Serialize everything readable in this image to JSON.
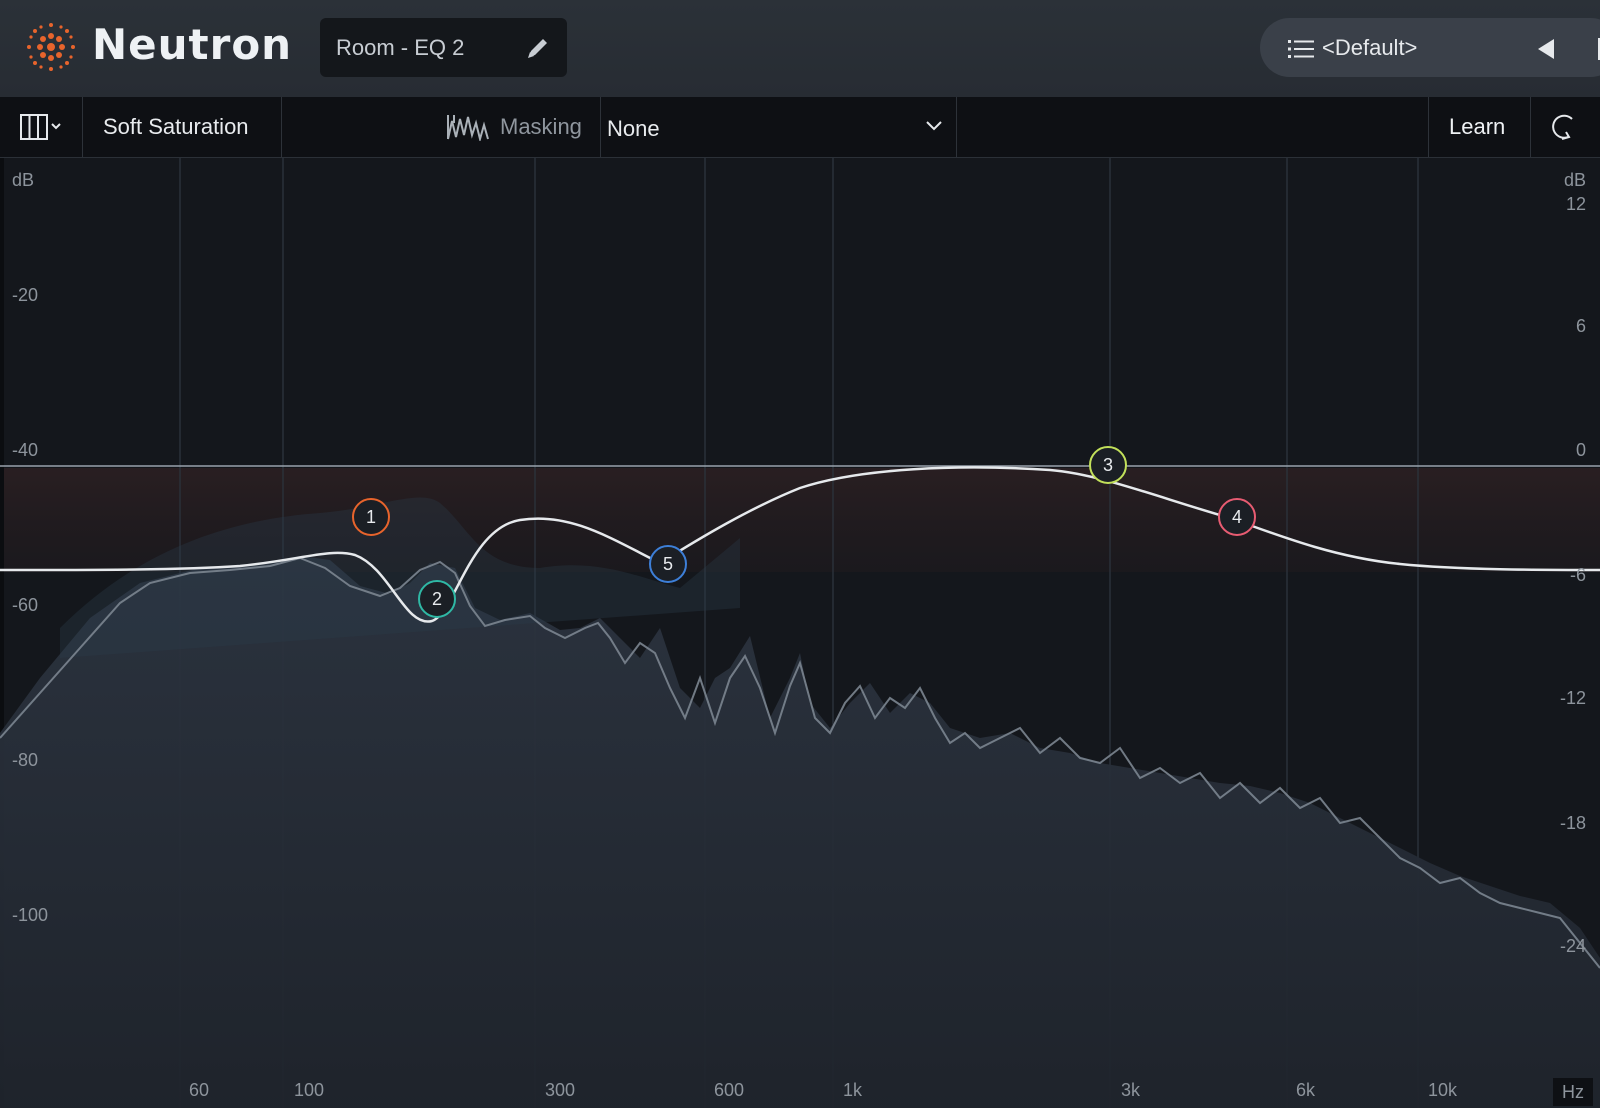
{
  "header": {
    "app_name": "Neutron",
    "preset_name": "Room - EQ 2",
    "preset_selector": "<Default>",
    "icons": [
      "neutron-logo-icon",
      "pencil-icon",
      "list-icon",
      "play-left-icon"
    ]
  },
  "toolbar": {
    "view_icon": "columns-view-icon",
    "soft_saturation": "Soft Saturation",
    "masking_label": "Masking",
    "masking_value": "None",
    "learn": "Learn",
    "reset_icon": "reset-icon"
  },
  "spectrum": {
    "left_unit": "dB",
    "right_unit": "dB",
    "left_scale": [
      "-20",
      "-40",
      "-60",
      "-80",
      "-100"
    ],
    "right_scale": [
      "12",
      "6",
      "0",
      "-6",
      "-12",
      "-18",
      "-24"
    ],
    "freq_labels": [
      "60",
      "100",
      "300",
      "600",
      "1k",
      "3k",
      "6k",
      "10k"
    ],
    "freq_unit": "Hz",
    "nodes": [
      {
        "label": "1",
        "color": "#e8642c"
      },
      {
        "label": "2",
        "color": "#2fb8a5"
      },
      {
        "label": "3",
        "color": "#c2e05a"
      },
      {
        "label": "4",
        "color": "#e85c72"
      },
      {
        "label": "5",
        "color": "#3d7fd8"
      }
    ]
  },
  "colors": {
    "accent_orange": "#e8642c",
    "background": "#14171c",
    "header": "#2b3138"
  }
}
